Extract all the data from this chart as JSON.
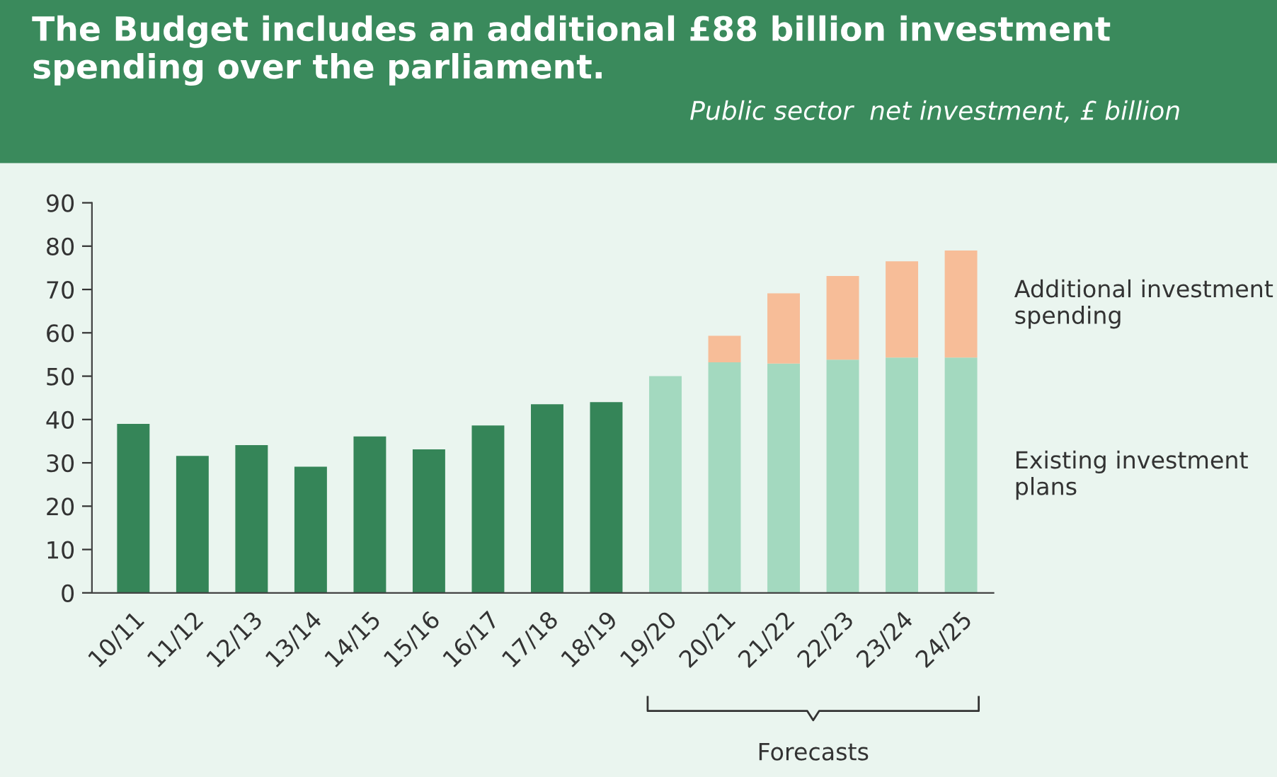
{
  "chart_data": {
    "type": "bar",
    "stacked": true,
    "title": "The Budget includes an additional £88 billion investment spending over the parliament.",
    "subtitle": "Public sector  net investment, £ billion",
    "categories": [
      "10/11",
      "11/12",
      "12/13",
      "13/14",
      "14/15",
      "15/16",
      "16/17",
      "17/18",
      "18/19",
      "19/20",
      "20/21",
      "21/22",
      "22/23",
      "23/24",
      "24/25"
    ],
    "series": [
      {
        "color": "#358558",
        "values": [
          39.0,
          31.6,
          34.1,
          29.1,
          36.1,
          33.1,
          38.6,
          43.5,
          44.0,
          null,
          null,
          null,
          null,
          null,
          null
        ]
      },
      {
        "name": "Existing investment plans",
        "color": "#a3d9bf",
        "values": [
          null,
          null,
          null,
          null,
          null,
          null,
          null,
          null,
          null,
          50.0,
          53.2,
          52.9,
          53.8,
          54.3,
          54.3
        ]
      },
      {
        "name": "Additional investment spending",
        "color": "#f7bd98",
        "values": [
          null,
          null,
          null,
          null,
          null,
          null,
          null,
          null,
          null,
          null,
          6.1,
          16.2,
          19.3,
          22.2,
          24.7
        ]
      }
    ],
    "ylim": [
      0,
      90
    ],
    "yticks": [
      0,
      10,
      20,
      30,
      40,
      50,
      60,
      70,
      80,
      90
    ],
    "grid": false,
    "legend": "right",
    "annotations": [
      "Forecasts"
    ]
  }
}
